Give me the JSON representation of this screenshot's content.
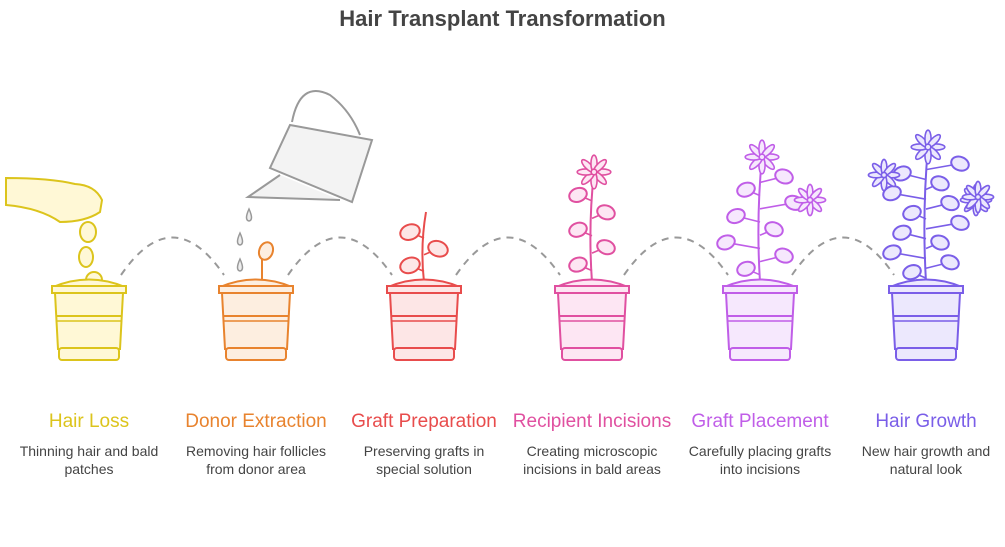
{
  "title": "Hair Transplant Transformation",
  "steps": [
    {
      "title": "Hair Loss",
      "desc": "Thinning hair and bald patches",
      "color": "#dcc41c",
      "fill": "#fff8d6",
      "icon": "hand-dropping-seeds-icon"
    },
    {
      "title": "Donor Extraction",
      "desc": "Removing hair follicles from donor area",
      "color": "#e8832e",
      "fill": "#fdeee0",
      "icon": "watering-can-sprout-icon"
    },
    {
      "title": "Graft Preparation",
      "desc": "Preserving grafts in special solution",
      "color": "#e84c4c",
      "fill": "#fde6e6",
      "icon": "young-plant-icon"
    },
    {
      "title": "Recipient Incisions",
      "desc": "Creating microscopic incisions in bald areas",
      "color": "#e050a0",
      "fill": "#fde6f3",
      "icon": "flowering-plant-icon"
    },
    {
      "title": "Graft Placement",
      "desc": "Carefully placing grafts into incisions",
      "color": "#c05ee8",
      "fill": "#f6e8fd",
      "icon": "growing-plant-icon"
    },
    {
      "title": "Hair Growth",
      "desc": "New hair growth and natural look",
      "color": "#7a5ee8",
      "fill": "#ece8fd",
      "icon": "full-plant-icon"
    }
  ]
}
